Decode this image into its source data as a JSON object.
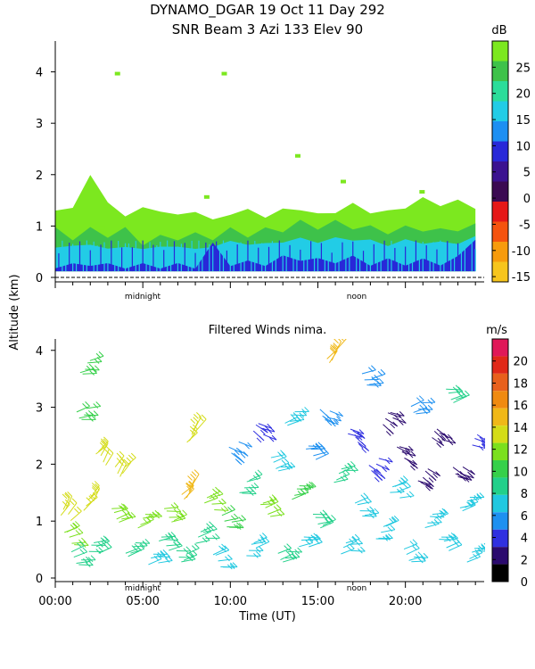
{
  "header": {
    "line1": "DYNAMO_DGAR  19 Oct 11 Day 292",
    "line2": "SNR Beam 3 Azi 133 Elev 90"
  },
  "shared": {
    "ylabel": "Altitude (km)",
    "xlabel": "Time (UT)",
    "midnight_label": "midnight",
    "noon_label": "noon",
    "x_tick_labels": [
      "00:00",
      "05:00",
      "10:00",
      "15:00",
      "20:00"
    ]
  },
  "chart_data": [
    {
      "type": "heatmap",
      "title": "SNR Beam 3 Azi 133 Elev 90",
      "xlabel": "",
      "ylabel": "Altitude (km)",
      "xlim": [
        0,
        24.5
      ],
      "ylim": [
        0,
        4.6
      ],
      "y_ticks": [
        0,
        1,
        2,
        3,
        4
      ],
      "colorbar": {
        "unit": "dB",
        "tick_values": [
          25,
          20,
          15,
          10,
          5,
          0,
          -5,
          -10,
          -15
        ],
        "tick_labels": [
          "25",
          "20",
          "15",
          "10",
          "5",
          "0",
          "-5",
          "-10",
          "-15"
        ],
        "colors": [
          "#f7c51c",
          "#f79b0c",
          "#f5530e",
          "#e51818",
          "#3b0a52",
          "#3b1290",
          "#2828d8",
          "#1d8ff2",
          "#22cce6",
          "#2bdd9a",
          "#3ec24a",
          "#7ce81f"
        ]
      },
      "series": [
        {
          "layer": "light-green",
          "color": "#7ce81f",
          "x": [
            0.0,
            1.0,
            2.0,
            3.0,
            4.0,
            5.0,
            6.0,
            7.0,
            8.0,
            9.0,
            10.0,
            11.0,
            12.0,
            13.0,
            14.0,
            15.0,
            16.0,
            17.0,
            18.0,
            19.0,
            20.0,
            21.0,
            22.0,
            23.0,
            24.0
          ],
          "top_km": [
            1.3,
            1.35,
            2.0,
            1.45,
            1.2,
            1.35,
            1.3,
            1.2,
            1.3,
            1.1,
            1.25,
            1.3,
            1.2,
            1.3,
            1.35,
            1.2,
            1.3,
            1.4,
            1.3,
            1.25,
            1.4,
            1.5,
            1.45,
            1.45,
            1.4
          ]
        },
        {
          "layer": "green",
          "color": "#3ec24a",
          "x": [
            0.0,
            1.0,
            2.0,
            3.0,
            4.0,
            5.0,
            6.0,
            7.0,
            8.0,
            9.0,
            10.0,
            11.0,
            12.0,
            13.0,
            14.0,
            15.0,
            16.0,
            17.0,
            18.0,
            19.0,
            20.0,
            21.0,
            22.0,
            23.0,
            24.0
          ],
          "top_km": [
            0.9,
            0.8,
            0.9,
            0.85,
            0.9,
            0.7,
            0.75,
            0.8,
            0.8,
            0.8,
            0.9,
            0.85,
            0.9,
            0.95,
            1.05,
            1.0,
            1.05,
            1.0,
            0.95,
            0.9,
            0.95,
            0.95,
            0.9,
            0.95,
            1.0
          ]
        },
        {
          "layer": "cyan",
          "color": "#22cce6",
          "x": [
            0.0,
            1.0,
            2.0,
            3.0,
            4.0,
            5.0,
            6.0,
            7.0,
            8.0,
            9.0,
            10.0,
            11.0,
            12.0,
            13.0,
            14.0,
            15.0,
            16.0,
            17.0,
            18.0,
            19.0,
            20.0,
            21.0,
            22.0,
            23.0,
            24.0
          ],
          "top_km": [
            0.6,
            0.6,
            0.65,
            0.55,
            0.6,
            0.55,
            0.6,
            0.6,
            0.55,
            0.6,
            0.7,
            0.65,
            0.65,
            0.7,
            0.75,
            0.7,
            0.75,
            0.75,
            0.7,
            0.65,
            0.7,
            0.7,
            0.65,
            0.7,
            0.75
          ]
        },
        {
          "layer": "blue",
          "color": "#2828d8",
          "x": [
            0.0,
            1.0,
            2.0,
            3.0,
            4.0,
            5.0,
            6.0,
            7.0,
            8.0,
            9.0,
            10.0,
            11.0,
            12.0,
            13.0,
            14.0,
            15.0,
            16.0,
            17.0,
            18.0,
            19.0,
            20.0,
            21.0,
            22.0,
            23.0,
            24.0
          ],
          "top_km": [
            0.25,
            0.2,
            0.3,
            0.2,
            0.25,
            0.2,
            0.25,
            0.2,
            0.25,
            0.6,
            0.3,
            0.25,
            0.3,
            0.35,
            0.4,
            0.3,
            0.35,
            0.35,
            0.3,
            0.3,
            0.3,
            0.3,
            0.3,
            0.35,
            0.8
          ]
        }
      ]
    },
    {
      "type": "scatter",
      "title": "Filtered Winds nima.",
      "xlabel": "Time (UT)",
      "ylabel": "Altitude (km)",
      "xlim": [
        0,
        24.5
      ],
      "ylim": [
        0,
        4.2
      ],
      "x_ticks": [
        0,
        5,
        10,
        15,
        20
      ],
      "y_ticks": [
        0,
        1,
        2,
        3,
        4
      ],
      "colorbar": {
        "unit": "m/s",
        "tick_values": [
          20,
          18,
          16,
          14,
          12,
          10,
          8,
          6,
          4,
          2,
          0
        ],
        "tick_labels": [
          "20",
          "18",
          "16",
          "14",
          "12",
          "10",
          "8",
          "6",
          "4",
          "2",
          "0"
        ],
        "colors": [
          "#000000",
          "#2b0a6e",
          "#3030e0",
          "#1e90f0",
          "#20c8e0",
          "#22d08a",
          "#36d04a",
          "#7be01e",
          "#d4dc18",
          "#f0b818",
          "#f08a10",
          "#e8601c",
          "#e02818",
          "#e01858"
        ]
      },
      "series": [
        {
          "name": "wind barbs",
          "points": [
            {
              "t": 0.6,
              "alt": 1.1,
              "speed": 14
            },
            {
              "t": 0.8,
              "alt": 0.7,
              "speed": 11
            },
            {
              "t": 1.2,
              "alt": 0.35,
              "speed": 9
            },
            {
              "t": 1.5,
              "alt": 2.9,
              "speed": 10
            },
            {
              "t": 1.7,
              "alt": 3.7,
              "speed": 10
            },
            {
              "t": 1.9,
              "alt": 1.3,
              "speed": 14
            },
            {
              "t": 2.2,
              "alt": 0.5,
              "speed": 9
            },
            {
              "t": 2.6,
              "alt": 2.1,
              "speed": 14
            },
            {
              "t": 3.5,
              "alt": 1.1,
              "speed": 12
            },
            {
              "t": 3.7,
              "alt": 1.9,
              "speed": 14
            },
            {
              "t": 4.3,
              "alt": 0.5,
              "speed": 9
            },
            {
              "t": 5.0,
              "alt": 1.0,
              "speed": 12
            },
            {
              "t": 5.6,
              "alt": 0.3,
              "speed": 7
            },
            {
              "t": 6.2,
              "alt": 0.6,
              "speed": 8
            },
            {
              "t": 6.5,
              "alt": 1.1,
              "speed": 11
            },
            {
              "t": 7.2,
              "alt": 0.4,
              "speed": 8
            },
            {
              "t": 7.5,
              "alt": 1.5,
              "speed": 15
            },
            {
              "t": 7.8,
              "alt": 2.5,
              "speed": 13
            },
            {
              "t": 8.3,
              "alt": 0.7,
              "speed": 8
            },
            {
              "t": 8.8,
              "alt": 1.3,
              "speed": 11
            },
            {
              "t": 9.3,
              "alt": 0.3,
              "speed": 7
            },
            {
              "t": 9.8,
              "alt": 1.0,
              "speed": 10
            },
            {
              "t": 10.2,
              "alt": 2.3,
              "speed": 5
            },
            {
              "t": 10.8,
              "alt": 1.6,
              "speed": 8
            },
            {
              "t": 11.2,
              "alt": 0.5,
              "speed": 7
            },
            {
              "t": 11.6,
              "alt": 2.6,
              "speed": 4
            },
            {
              "t": 12.0,
              "alt": 1.2,
              "speed": 12
            },
            {
              "t": 12.6,
              "alt": 2.0,
              "speed": 7
            },
            {
              "t": 13.0,
              "alt": 0.4,
              "speed": 8
            },
            {
              "t": 13.4,
              "alt": 2.8,
              "speed": 7
            },
            {
              "t": 13.8,
              "alt": 1.5,
              "speed": 10
            },
            {
              "t": 14.2,
              "alt": 0.6,
              "speed": 7
            },
            {
              "t": 14.6,
              "alt": 2.2,
              "speed": 6
            },
            {
              "t": 15.0,
              "alt": 1.0,
              "speed": 9
            },
            {
              "t": 15.4,
              "alt": 2.9,
              "speed": 5
            },
            {
              "t": 15.8,
              "alt": 3.9,
              "speed": 15
            },
            {
              "t": 16.2,
              "alt": 1.8,
              "speed": 8
            },
            {
              "t": 16.6,
              "alt": 0.5,
              "speed": 7
            },
            {
              "t": 17.0,
              "alt": 2.5,
              "speed": 4
            },
            {
              "t": 17.4,
              "alt": 1.2,
              "speed": 7
            },
            {
              "t": 17.8,
              "alt": 3.5,
              "speed": 6
            },
            {
              "t": 18.2,
              "alt": 2.0,
              "speed": 4
            },
            {
              "t": 18.6,
              "alt": 0.8,
              "speed": 7
            },
            {
              "t": 19.0,
              "alt": 2.8,
              "speed": 3
            },
            {
              "t": 19.4,
              "alt": 1.5,
              "speed": 7
            },
            {
              "t": 19.8,
              "alt": 2.2,
              "speed": 3
            },
            {
              "t": 20.2,
              "alt": 0.4,
              "speed": 7
            },
            {
              "t": 20.6,
              "alt": 3.0,
              "speed": 6
            },
            {
              "t": 21.0,
              "alt": 1.8,
              "speed": 3
            },
            {
              "t": 21.4,
              "alt": 1.0,
              "speed": 7
            },
            {
              "t": 21.8,
              "alt": 2.5,
              "speed": 3
            },
            {
              "t": 22.2,
              "alt": 0.6,
              "speed": 7
            },
            {
              "t": 22.6,
              "alt": 3.2,
              "speed": 9
            },
            {
              "t": 23.0,
              "alt": 1.9,
              "speed": 3
            },
            {
              "t": 23.4,
              "alt": 1.3,
              "speed": 7
            },
            {
              "t": 23.8,
              "alt": 0.4,
              "speed": 7
            },
            {
              "t": 24.1,
              "alt": 2.4,
              "speed": 4
            }
          ]
        }
      ]
    }
  ]
}
